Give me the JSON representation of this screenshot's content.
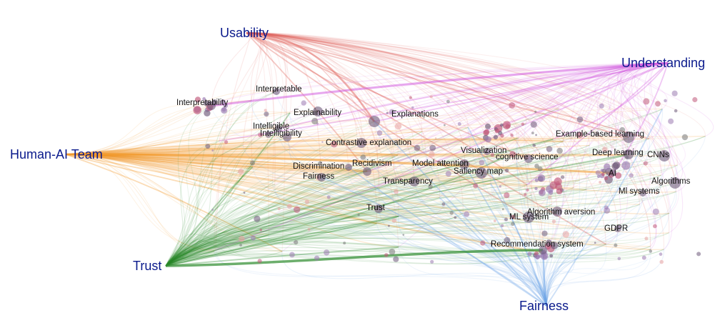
{
  "palette": {
    "usability": "#e0605a",
    "understanding": "#d35ee0",
    "human_ai_team": "#f39a2e",
    "trust": "#2e8b2e",
    "fairness": "#6fa6e8",
    "node": "#6e5a7a"
  },
  "hubs": [
    {
      "id": "usability",
      "label": "Usability",
      "color": "usability"
    },
    {
      "id": "understanding",
      "label": "Understanding",
      "color": "understanding"
    },
    {
      "id": "human_ai_team",
      "label": "Human-AI Team",
      "color": "human_ai_team"
    },
    {
      "id": "trust",
      "label": "Trust",
      "color": "trust"
    },
    {
      "id": "fairness",
      "label": "Fairness",
      "color": "fairness"
    }
  ],
  "nodes": [
    {
      "id": "interpretable",
      "label": "Interpretable"
    },
    {
      "id": "interpretability",
      "label": "Interpretability"
    },
    {
      "id": "explainability",
      "label": "Explainability"
    },
    {
      "id": "explanations",
      "label": "Explanations"
    },
    {
      "id": "intelligible",
      "label": "Intelligible"
    },
    {
      "id": "intelligibility",
      "label": "Intelligibility"
    },
    {
      "id": "contrastive_explanation",
      "label": "Contrastive explanation"
    },
    {
      "id": "example_based_learning",
      "label": "Example-based learning"
    },
    {
      "id": "visualization",
      "label": "Visualization"
    },
    {
      "id": "cognitive_science",
      "label": "cognitive science"
    },
    {
      "id": "deep_learning",
      "label": "Deep learning"
    },
    {
      "id": "cnns",
      "label": "CNNs"
    },
    {
      "id": "discrimination",
      "label": "Discrimination"
    },
    {
      "id": "recidivism",
      "label": "Recidivism"
    },
    {
      "id": "model_attention",
      "label": "Model attention"
    },
    {
      "id": "saliency_map",
      "label": "Saliency map"
    },
    {
      "id": "ai",
      "label": "AI"
    },
    {
      "id": "fairness_node",
      "label": "Fairness"
    },
    {
      "id": "transparency",
      "label": "Transparency"
    },
    {
      "id": "algorithms",
      "label": "Algorithms"
    },
    {
      "id": "ml_systems",
      "label": "Ml systems"
    },
    {
      "id": "trust_node",
      "label": "Trust"
    },
    {
      "id": "algorithm_aversion",
      "label": "Algorithm aversion"
    },
    {
      "id": "ml_system",
      "label": "ML system"
    },
    {
      "id": "gdpr",
      "label": "GDPR"
    },
    {
      "id": "recommendation_system",
      "label": "Recommendation system"
    }
  ]
}
